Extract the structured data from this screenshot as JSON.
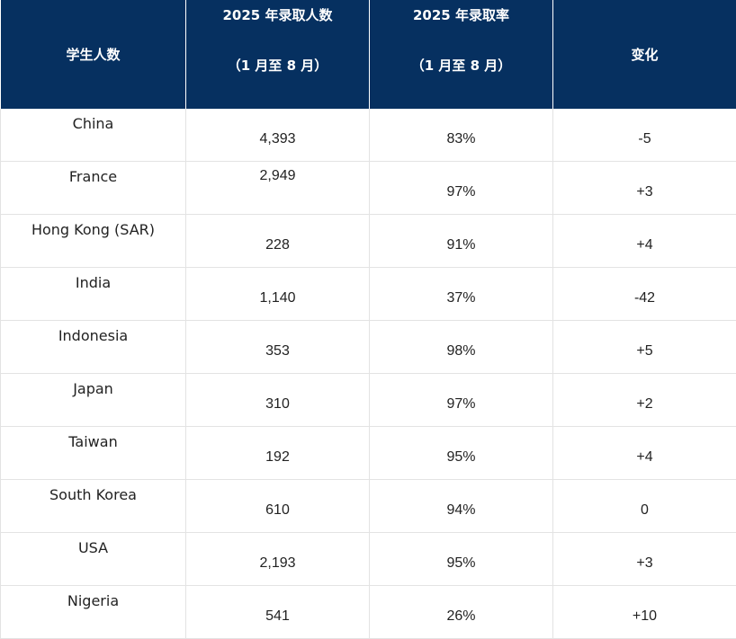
{
  "table": {
    "headers": {
      "col1": "学生人数",
      "col2_line1": "2025 年录取人数",
      "col2_line2": "（1 月至 8 月）",
      "col3_line1": "2025 年录取率",
      "col3_line2": "（1 月至 8 月）",
      "col4": "变化"
    },
    "rows": [
      {
        "country": "China",
        "admissions": "4,393",
        "rate": "83%",
        "change": "-5"
      },
      {
        "country": "France",
        "admissions": "2,949",
        "rate": "97%",
        "change": "+3"
      },
      {
        "country": "Hong Kong (SAR)",
        "admissions": "228",
        "rate": "91%",
        "change": "+4"
      },
      {
        "country": "India",
        "admissions": "1,140",
        "rate": "37%",
        "change": "-42"
      },
      {
        "country": "Indonesia",
        "admissions": "353",
        "rate": "98%",
        "change": "+5"
      },
      {
        "country": "Japan",
        "admissions": "310",
        "rate": "97%",
        "change": "+2"
      },
      {
        "country": "Taiwan",
        "admissions": "192",
        "rate": "95%",
        "change": "+4"
      },
      {
        "country": "South Korea",
        "admissions": "610",
        "rate": "94%",
        "change": "0"
      },
      {
        "country": "USA",
        "admissions": "2,193",
        "rate": "95%",
        "change": "+3"
      },
      {
        "country": "Nigeria",
        "admissions": "541",
        "rate": "26%",
        "change": "+10"
      }
    ]
  },
  "colors": {
    "header_bg": "#063060",
    "header_text": "#ffffff",
    "border": "#e3e3e3"
  }
}
